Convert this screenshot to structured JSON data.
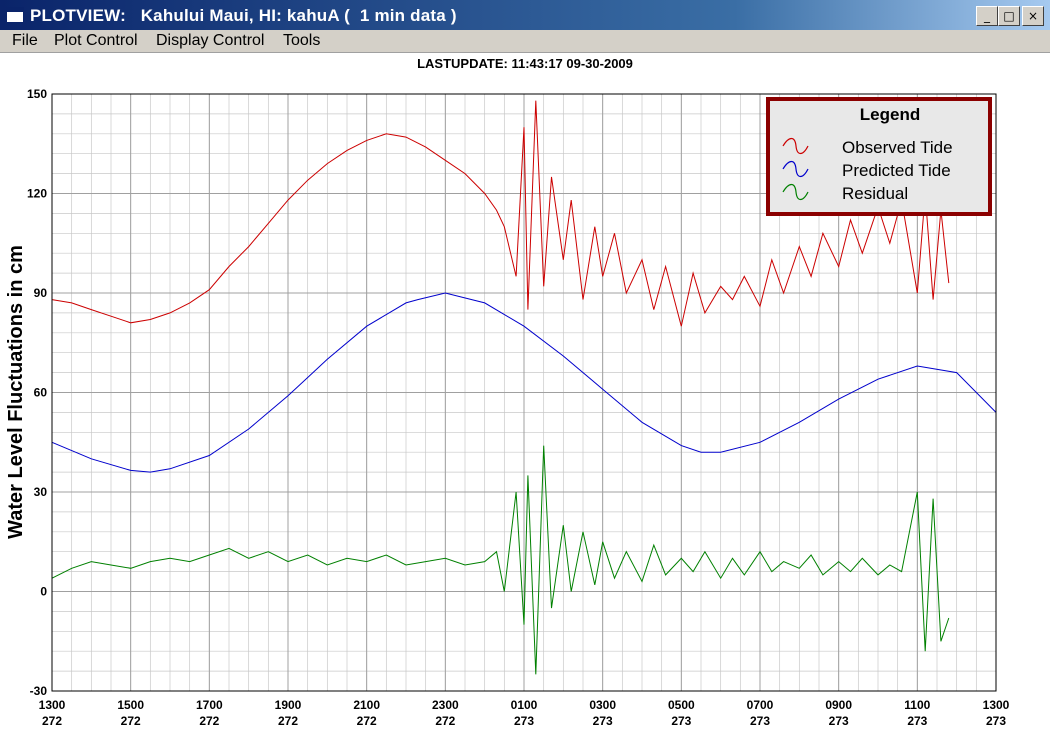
{
  "window": {
    "title": "PLOTVIEW:   Kahului Maui, HI: kahuA (  1 min data )",
    "minimize_label": "_",
    "maximize_label": "□",
    "close_label": "×"
  },
  "menu": {
    "items": [
      "File",
      "Plot Control",
      "Display Control",
      "Tools"
    ]
  },
  "header": {
    "last_update": "LASTUPDATE: 11:43:17  09-30-2009"
  },
  "colors": {
    "observed": "#cc0000",
    "predicted": "#0000cc",
    "residual": "#008000",
    "legend_border": "#8b0000",
    "grid": "#a0a0a0"
  },
  "chart_data": {
    "type": "line",
    "ylabel": "Water Level Fluctuations in cm",
    "ylim": [
      -30,
      150
    ],
    "yticks": [
      150,
      120,
      90,
      60,
      30,
      0,
      -30
    ],
    "xlim": [
      0,
      24
    ],
    "xticks": [
      {
        "hour": "1300",
        "day": "272"
      },
      {
        "hour": "1500",
        "day": "272"
      },
      {
        "hour": "1700",
        "day": "272"
      },
      {
        "hour": "1900",
        "day": "272"
      },
      {
        "hour": "2100",
        "day": "272"
      },
      {
        "hour": "2300",
        "day": "272"
      },
      {
        "hour": "0100",
        "day": "273"
      },
      {
        "hour": "0300",
        "day": "273"
      },
      {
        "hour": "0500",
        "day": "273"
      },
      {
        "hour": "0700",
        "day": "273"
      },
      {
        "hour": "0900",
        "day": "273"
      },
      {
        "hour": "1100",
        "day": "273"
      },
      {
        "hour": "1300",
        "day": "273"
      }
    ],
    "grid": true,
    "legend": {
      "title": "Legend",
      "placement": "top-right"
    },
    "series": [
      {
        "name": "Observed Tide",
        "x": [
          0,
          0.5,
          1,
          1.5,
          2,
          2.5,
          3,
          3.5,
          4,
          4.5,
          5,
          5.5,
          6,
          6.5,
          7,
          7.5,
          8,
          8.5,
          9,
          9.5,
          10,
          10.5,
          11,
          11.3,
          11.5,
          11.8,
          12,
          12.1,
          12.3,
          12.5,
          12.7,
          13,
          13.2,
          13.5,
          13.8,
          14,
          14.3,
          14.6,
          15,
          15.3,
          15.6,
          16,
          16.3,
          16.6,
          17,
          17.3,
          17.6,
          18,
          18.3,
          18.6,
          19,
          19.3,
          19.6,
          20,
          20.3,
          20.6,
          21,
          21.3,
          21.6,
          22,
          22.2,
          22.4,
          22.6,
          22.8
        ],
        "values": [
          88,
          87,
          85,
          83,
          81,
          82,
          84,
          87,
          91,
          98,
          104,
          111,
          118,
          124,
          129,
          133,
          136,
          138,
          137,
          134,
          130,
          126,
          120,
          115,
          110,
          95,
          140,
          85,
          148,
          92,
          125,
          100,
          118,
          88,
          110,
          95,
          108,
          90,
          100,
          85,
          98,
          80,
          96,
          84,
          92,
          88,
          95,
          86,
          100,
          90,
          104,
          95,
          108,
          98,
          112,
          102,
          116,
          105,
          118,
          90,
          120,
          88,
          115,
          93
        ]
      },
      {
        "name": "Predicted Tide",
        "x": [
          0,
          1,
          2,
          2.5,
          3,
          4,
          5,
          6,
          7,
          8,
          9,
          9.3,
          10,
          11,
          12,
          13,
          14,
          15,
          16,
          16.5,
          17,
          18,
          19,
          20,
          21,
          22,
          23,
          24
        ],
        "values": [
          45,
          40,
          36.5,
          36,
          37,
          41,
          49,
          59,
          70,
          80,
          87,
          88,
          90,
          87,
          80,
          71,
          61,
          51,
          44,
          42,
          42,
          45,
          51,
          58,
          64,
          68,
          66,
          54
        ]
      },
      {
        "name": "Residual",
        "x": [
          0,
          0.5,
          1,
          1.5,
          2,
          2.5,
          3,
          3.5,
          4,
          4.5,
          5,
          5.5,
          6,
          6.5,
          7,
          7.5,
          8,
          8.5,
          9,
          9.5,
          10,
          10.5,
          11,
          11.3,
          11.5,
          11.8,
          12,
          12.1,
          12.3,
          12.5,
          12.7,
          13,
          13.2,
          13.5,
          13.8,
          14,
          14.3,
          14.6,
          15,
          15.3,
          15.6,
          16,
          16.3,
          16.6,
          17,
          17.3,
          17.6,
          18,
          18.3,
          18.6,
          19,
          19.3,
          19.6,
          20,
          20.3,
          20.6,
          21,
          21.3,
          21.6,
          22,
          22.2,
          22.4,
          22.6,
          22.8
        ],
        "values": [
          4,
          7,
          9,
          8,
          7,
          9,
          10,
          9,
          11,
          13,
          10,
          12,
          9,
          11,
          8,
          10,
          9,
          11,
          8,
          9,
          10,
          8,
          9,
          12,
          0,
          30,
          -10,
          35,
          -25,
          44,
          -5,
          20,
          0,
          18,
          2,
          15,
          4,
          12,
          3,
          14,
          5,
          10,
          6,
          12,
          4,
          10,
          5,
          12,
          6,
          9,
          7,
          11,
          5,
          9,
          6,
          10,
          5,
          8,
          6,
          30,
          -18,
          28,
          -15,
          -8
        ]
      }
    ]
  }
}
